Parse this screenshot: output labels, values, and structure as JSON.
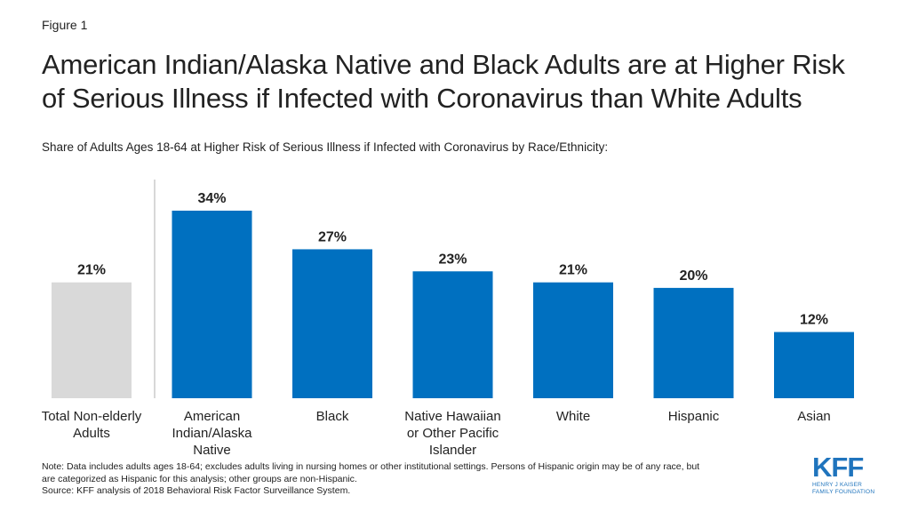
{
  "figure_label": "Figure 1",
  "title_line1": "American Indian/Alaska Native and Black Adults are at Higher Risk",
  "title_line2": "of Serious Illness if Infected with Coronavirus than White Adults",
  "subtitle": "Share of Adults Ages 18-64 at Higher Risk of Serious Illness if Infected with Coronavirus by Race/Ethnicity:",
  "chart_data": {
    "type": "bar",
    "categories": [
      [
        "Total Non-elderly",
        "Adults"
      ],
      [
        "American",
        "Indian/Alaska",
        "Native"
      ],
      [
        "Black"
      ],
      [
        "Native Hawaiian",
        "or Other Pacific",
        "Islander"
      ],
      [
        "White"
      ],
      [
        "Hispanic"
      ],
      [
        "Asian"
      ]
    ],
    "values": [
      21,
      34,
      27,
      23,
      21,
      20,
      12
    ],
    "value_labels": [
      "21%",
      "34%",
      "27%",
      "23%",
      "21%",
      "20%",
      "12%"
    ],
    "colors": [
      "#d9d9d9",
      "#0070c0",
      "#0070c0",
      "#0070c0",
      "#0070c0",
      "#0070c0",
      "#0070c0"
    ],
    "unit": "%",
    "ylim": [
      0,
      34
    ],
    "grid": false
  },
  "notes": {
    "line1": "Note: Data includes adults ages 18-64; excludes adults living in nursing homes or other institutional settings. Persons of Hispanic origin may be of any race, but",
    "line2": "are categorized as Hispanic for this analysis; other groups are non-Hispanic.",
    "source": "Source: KFF analysis of 2018 Behavioral Risk Factor Surveillance System."
  },
  "logo": {
    "mark": "KFF",
    "line1": "HENRY J KAISER",
    "line2": "FAMILY FOUNDATION",
    "color": "#1f74bd"
  }
}
